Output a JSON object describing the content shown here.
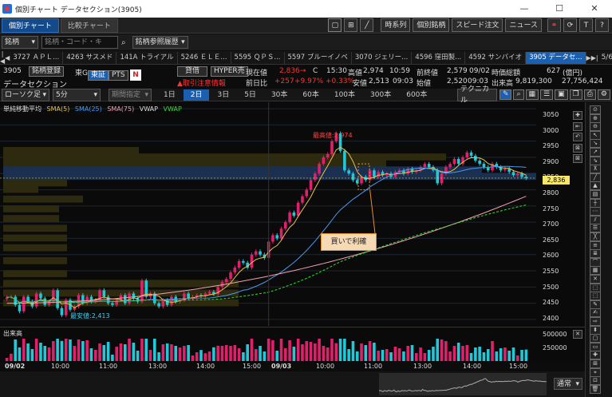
{
  "titlebar": {
    "title": "個別チャート データセクション(3905)"
  },
  "tabs": [
    {
      "label": "個別チャート"
    },
    {
      "label": "比較チャート"
    }
  ],
  "toolbar_buttons": {
    "timeseries": "時系列",
    "individual": "個別銘柄",
    "speed_order": "スピード注文",
    "news": "ニュース"
  },
  "row2": {
    "brand": "銘柄",
    "search_placeholder": "銘柄・コード・キー...",
    "history": "銘柄参照履歴"
  },
  "watch": [
    {
      "label": "3727 ＡＰＬ..."
    },
    {
      "label": "4263 サスメド"
    },
    {
      "label": "141A トライアル"
    },
    {
      "label": "5246 ＥＬＥ..."
    },
    {
      "label": "5595 ＱＰＳ..."
    },
    {
      "label": "5597 ブルーイノベ"
    },
    {
      "label": "3070 ジェリー..."
    },
    {
      "label": "4596 窪田製..."
    },
    {
      "label": "4592 サンバイオ"
    },
    {
      "label": "3905 データセ..."
    }
  ],
  "watch_page": "5/6",
  "stock": {
    "code": "3905",
    "name": "データセクション",
    "register": "銘柄登録",
    "market_suffix": "東G",
    "exchange": "東証",
    "pts": "PTS",
    "margin": "貸借",
    "hyper": "HYPER売",
    "warning": "取引注意情報",
    "cur_label": "現在値",
    "cur": "2,836",
    "cur_arrow": "→",
    "cur_c": "C",
    "cur_time": "15:30",
    "high_label": "高値",
    "high": "2,974",
    "high_time": "10:59",
    "prevclose_label": "前終値",
    "prevclose": "2,579",
    "prevclose_date": "09/02",
    "mcap_label": "時価総額",
    "mcap": "627",
    "mcap_unit": "(億円)",
    "chg_label": "前日比",
    "chg": "+257",
    "chg_pct": "+9.97%",
    "chg_pct2": "+0.33%",
    "low_label": "安値",
    "low": "2,513",
    "low_time": "09:03",
    "open_label": "始値",
    "open": "2,520",
    "open_time": "09:03",
    "vol_label": "出来高",
    "vol": "9,819,300",
    "turnover": "27,756,424"
  },
  "row5": {
    "candle": "ローソク足",
    "interval": "5分",
    "period": "期間指定",
    "periods": [
      "1日",
      "2日",
      "3日",
      "5日",
      "30本",
      "60本",
      "100本",
      "300本",
      "600本"
    ],
    "technical": "テクニカル"
  },
  "legend": {
    "title": "単純移動平均",
    "sma5": "SMA(5)",
    "sma25": "SMA(25)",
    "sma75": "SMA(75)",
    "vwap1": "VWAP",
    "vwap2": "VWAP"
  },
  "colors": {
    "sma5": "#e8c24a",
    "sma25": "#4a9af0",
    "sma75": "#f0a0b0",
    "vwap": "#33dd33",
    "up": "#e0206a",
    "down": "#20c8d8",
    "buy_box": "#e8902a"
  },
  "annotations": {
    "high": "最高値:2,974",
    "low": "最安値:2,413",
    "buy": "買いで利確"
  },
  "yticks": [
    "3050",
    "3000",
    "2950",
    "2900",
    "2850",
    "2800",
    "2750",
    "2700",
    "2650",
    "2600",
    "2550",
    "2500",
    "2450",
    "2400"
  ],
  "cur_label_axis": "2,836",
  "vol_title": "出来高",
  "vol_ticks": [
    "500000",
    "250000"
  ],
  "xlabels": [
    {
      "t": "09/02",
      "b": true
    },
    {
      "t": "10:00"
    },
    {
      "t": "11:00"
    },
    {
      "t": "13:00"
    },
    {
      "t": "14:00"
    },
    {
      "t": "15:00"
    },
    {
      "t": "09/03",
      "b": true
    },
    {
      "t": "10:00"
    },
    {
      "t": "11:00"
    },
    {
      "t": "13:00"
    },
    {
      "t": "14:00"
    },
    {
      "t": "15:00"
    }
  ],
  "nav_mode": "通常",
  "chart_data": {
    "type": "candlestick",
    "ylim": [
      2380,
      3070
    ],
    "series": [
      {
        "name": "close",
        "values": [
          2468,
          2470,
          2445,
          2425,
          2470,
          2455,
          2440,
          2480,
          2465,
          2445,
          2455,
          2490,
          2435,
          2413,
          2460,
          2430,
          2440,
          2475,
          2450,
          2470,
          2455,
          2460,
          2490,
          2470,
          2450,
          2445,
          2460,
          2475,
          2450,
          2480,
          2465,
          2455,
          2520,
          2470,
          2480,
          2450,
          2440,
          2460,
          2445,
          2470,
          2455,
          2460,
          2480,
          2465,
          2470,
          2475,
          2472,
          2480,
          2485,
          2478,
          2500,
          2515,
          2525,
          2545,
          2560,
          2580,
          2575,
          2560,
          2600,
          2610,
          2600,
          2590,
          2640,
          2660,
          2650,
          2680,
          2700,
          2730,
          2720,
          2760,
          2780,
          2800,
          2830,
          2850,
          2880,
          2900,
          2910,
          2950,
          2974,
          2920,
          2860,
          2850,
          2830,
          2820,
          2840,
          2830,
          2860,
          2840,
          2855,
          2845,
          2850,
          2840,
          2855,
          2860,
          2850,
          2865,
          2855,
          2860,
          2870,
          2880,
          2870,
          2860,
          2820,
          2850,
          2870,
          2880,
          2895,
          2880,
          2900,
          2915,
          2905,
          2890,
          2880,
          2870,
          2860,
          2880,
          2870,
          2860,
          2865,
          2855,
          2845,
          2850,
          2840,
          2836
        ]
      }
    ]
  }
}
